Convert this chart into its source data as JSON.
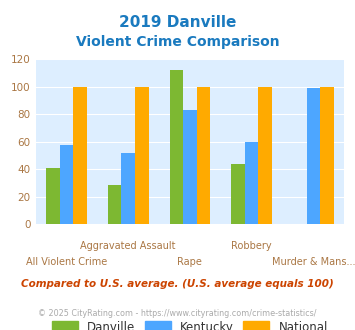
{
  "title_line1": "2019 Danville",
  "title_line2": "Violent Crime Comparison",
  "title_color": "#1a7abf",
  "categories": [
    "All Violent Crime",
    "Aggravated Assault",
    "Rape",
    "Robbery",
    "Murder & Mans..."
  ],
  "label_row1": [
    "",
    "Aggravated Assault",
    "",
    "Robbery",
    ""
  ],
  "label_row2": [
    "All Violent Crime",
    "",
    "Rape",
    "",
    "Murder & Mans..."
  ],
  "danville": [
    41,
    29,
    112,
    44,
    0
  ],
  "kentucky": [
    58,
    52,
    83,
    60,
    99
  ],
  "national": [
    100,
    100,
    100,
    100,
    100
  ],
  "danville_color": "#7db832",
  "kentucky_color": "#4da6ff",
  "national_color": "#ffaa00",
  "ylim": [
    0,
    120
  ],
  "yticks": [
    0,
    20,
    40,
    60,
    80,
    100,
    120
  ],
  "bg_color": "#ddeeff",
  "legend_labels": [
    "Danville",
    "Kentucky",
    "National"
  ],
  "footnote1": "Compared to U.S. average. (U.S. average equals 100)",
  "footnote2": "© 2025 CityRating.com - https://www.cityrating.com/crime-statistics/",
  "footnote1_color": "#cc4400",
  "footnote2_color": "#aaaaaa",
  "tick_color": "#aa7744"
}
